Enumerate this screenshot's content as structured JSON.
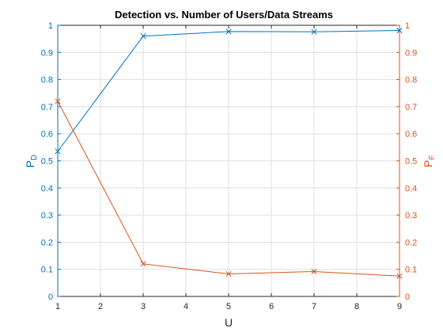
{
  "chart_data": {
    "type": "line",
    "title": "Detection vs. Number of Users/Data Streams",
    "xlabel": "U",
    "ylabel_left": {
      "main": "P",
      "sub": "D"
    },
    "ylabel_right": {
      "main": "P",
      "sub": "F"
    },
    "xlim": [
      1,
      9
    ],
    "ylim_left": [
      0,
      1
    ],
    "ylim_right": [
      0,
      1
    ],
    "xticks": [
      "1",
      "2",
      "3",
      "4",
      "5",
      "6",
      "7",
      "8",
      "9"
    ],
    "yticks_left": [
      "0",
      "0.1",
      "0.2",
      "0.3",
      "0.4",
      "0.5",
      "0.6",
      "0.7",
      "0.8",
      "0.9",
      "1"
    ],
    "yticks_right": [
      "0",
      "0.1",
      "0.2",
      "0.3",
      "0.4",
      "0.5",
      "0.6",
      "0.7",
      "0.8",
      "0.9",
      "1"
    ],
    "grid": true,
    "series": [
      {
        "axis": "left",
        "marker": "x",
        "color": "#0072BD",
        "x": [
          1,
          3,
          5,
          7,
          9
        ],
        "y": [
          0.535,
          0.96,
          0.977,
          0.976,
          0.981
        ]
      },
      {
        "axis": "right",
        "marker": "x",
        "color": "#D95319",
        "x": [
          1,
          3,
          5,
          7,
          9
        ],
        "y": [
          0.72,
          0.12,
          0.083,
          0.092,
          0.075
        ]
      }
    ]
  }
}
